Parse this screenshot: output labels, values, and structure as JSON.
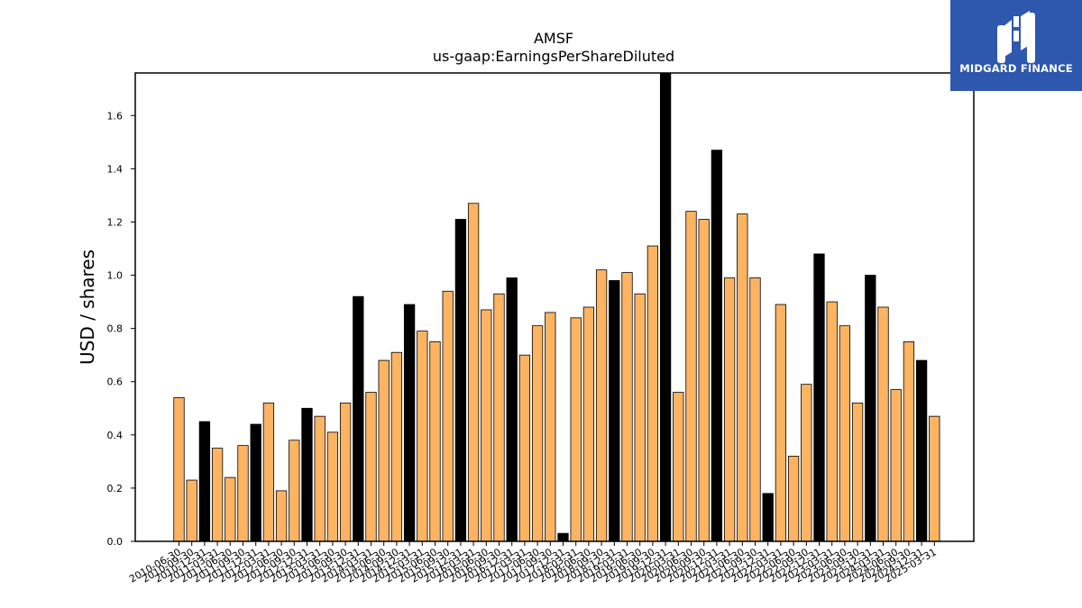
{
  "chart_data": {
    "type": "bar",
    "title": "AMSF",
    "subtitle": "us-gaap:EarningsPerShareDiluted",
    "xlabel": "",
    "ylabel": "USD / shares",
    "ylim": [
      0,
      1.76
    ],
    "yticks": [
      "0.0",
      "0.2",
      "0.4",
      "0.6",
      "0.8",
      "1.0",
      "1.2",
      "1.4",
      "1.6"
    ],
    "grid": false,
    "bar_colors": {
      "quarter": "#fdb462",
      "annual": "#000000"
    },
    "categories": [
      "2010-06-30",
      "2010-09-30",
      "2010-12-31",
      "2011-03-31",
      "2011-06-30",
      "2011-09-30",
      "2011-12-31",
      "2012-03-31",
      "2012-06-30",
      "2012-09-30",
      "2012-12-31",
      "2013-03-31",
      "2013-06-30",
      "2013-09-30",
      "2013-12-31",
      "2014-03-31",
      "2014-06-30",
      "2014-09-30",
      "2014-12-31",
      "2015-03-31",
      "2015-06-30",
      "2015-09-30",
      "2015-12-31",
      "2016-03-31",
      "2016-06-30",
      "2016-09-30",
      "2016-12-31",
      "2017-03-31",
      "2017-06-30",
      "2017-09-30",
      "2017-12-31",
      "2018-03-31",
      "2018-06-30",
      "2018-09-30",
      "2018-12-31",
      "2019-03-31",
      "2019-06-30",
      "2019-09-30",
      "2019-12-31",
      "2020-03-31",
      "2020-06-30",
      "2020-09-30",
      "2020-12-31",
      "2021-03-31",
      "2021-06-30",
      "2021-09-30",
      "2021-12-31",
      "2022-03-31",
      "2022-06-30",
      "2022-09-30",
      "2022-12-31",
      "2023-03-31",
      "2023-06-30",
      "2023-09-30",
      "2023-12-31",
      "2024-03-31",
      "2024-06-30",
      "2024-09-30",
      "2024-12-31",
      "2025-03-31"
    ],
    "values": [
      0.54,
      0.23,
      0.45,
      0.35,
      0.24,
      0.36,
      0.44,
      0.52,
      0.19,
      0.38,
      0.5,
      0.47,
      0.41,
      0.52,
      0.92,
      0.56,
      0.68,
      0.71,
      0.89,
      0.79,
      0.75,
      0.94,
      1.21,
      1.27,
      0.87,
      0.93,
      0.99,
      0.7,
      0.81,
      0.86,
      0.03,
      0.84,
      0.88,
      1.02,
      0.98,
      1.01,
      0.93,
      1.11,
      1.76,
      0.56,
      1.24,
      1.21,
      1.47,
      0.99,
      1.23,
      0.99,
      0.18,
      0.89,
      0.32,
      0.59,
      1.08,
      0.9,
      0.81,
      0.52,
      1.0,
      0.88,
      0.57,
      0.75,
      0.68,
      0.47
    ],
    "annual": [
      false,
      false,
      true,
      false,
      false,
      false,
      true,
      false,
      false,
      false,
      true,
      false,
      false,
      false,
      true,
      false,
      false,
      false,
      true,
      false,
      false,
      false,
      true,
      false,
      false,
      false,
      true,
      false,
      false,
      false,
      true,
      false,
      false,
      false,
      true,
      false,
      false,
      false,
      true,
      false,
      false,
      false,
      true,
      false,
      false,
      false,
      true,
      false,
      false,
      false,
      true,
      false,
      false,
      false,
      true,
      false,
      false,
      false,
      true,
      false
    ]
  },
  "logo": {
    "text": "MIDGARD FINANCE"
  }
}
